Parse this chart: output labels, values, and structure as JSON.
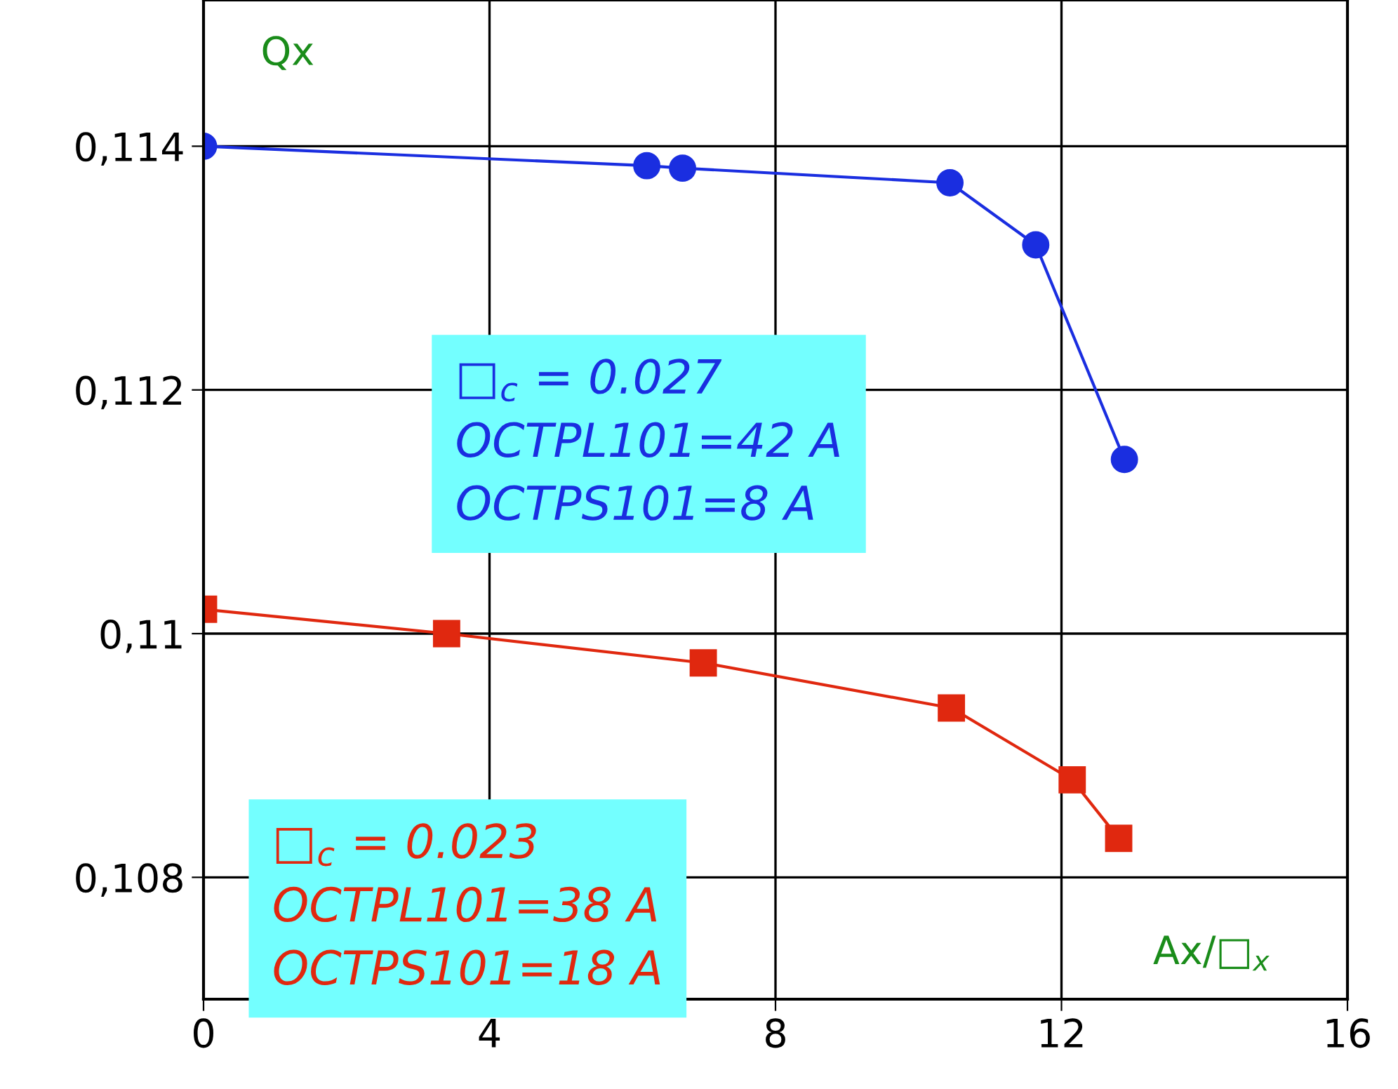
{
  "chart_data": {
    "type": "line",
    "xlabel": "Ax/□$_{x}$",
    "ylabel": "Qx",
    "xlim": [
      0,
      16
    ],
    "xticks": [
      0,
      4,
      8,
      12,
      16
    ],
    "ylim": [
      0.107,
      0.1152
    ],
    "yticks": [
      {
        "value": 0.108,
        "label": "0,108"
      },
      {
        "value": 0.11,
        "label": "0,11"
      },
      {
        "value": 0.112,
        "label": "0,112"
      },
      {
        "value": 0.114,
        "label": "0,114"
      }
    ],
    "grid": true,
    "series": [
      {
        "color": "#1a2ee0",
        "marker": "circle",
        "x": [
          0,
          6.2,
          6.7,
          10.44,
          11.64,
          12.88
        ],
        "values": [
          0.114,
          0.11384,
          0.11382,
          0.1137,
          0.11319,
          0.11143
        ]
      },
      {
        "color": "#e0280f",
        "marker": "square",
        "x": [
          0,
          3.4,
          6.99,
          10.46,
          12.15,
          12.8
        ],
        "values": [
          0.1102,
          0.11,
          0.10976,
          0.10939,
          0.1088,
          0.10832
        ]
      }
    ],
    "annotations": [
      "□$_{c}$ = 0.027\nOCTPL101=42 A\nOCTPS101=8 A",
      "□$_{c}$ = 0.023\nOCTPL101=38 A\nOCTPS101=18 A"
    ]
  }
}
